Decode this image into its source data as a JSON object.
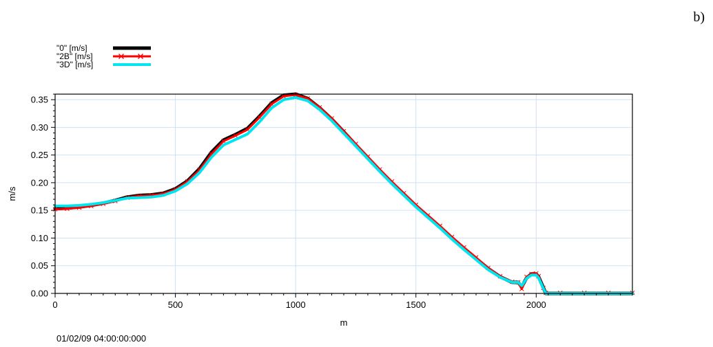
{
  "panel_label": "b)",
  "timestamp": "01/02/09 04:00:00:000",
  "colors": {
    "series_0": "#000000",
    "series_2b": "#ff0000",
    "series_3d": "#00e5ee",
    "grid": "#cfe1f5"
  },
  "chart_data": {
    "type": "line",
    "xlabel": "m",
    "ylabel": "m/s",
    "xlim": [
      0,
      2400
    ],
    "ylim": [
      0,
      0.36
    ],
    "grid": true,
    "legend_position": "top-left",
    "xticks": [
      0,
      500,
      1000,
      1500,
      2000
    ],
    "xtick_labels": [
      "0",
      "500",
      "1000",
      "1500",
      "2000"
    ],
    "yticks": [
      0,
      0.05,
      0.1,
      0.15,
      0.2,
      0.25,
      0.3,
      0.35
    ],
    "ytick_labels": [
      "0.00",
      "0.05",
      "0.10",
      "0.15",
      "0.20",
      "0.25",
      "0.30",
      "0.35"
    ],
    "x": [
      0,
      50,
      100,
      150,
      200,
      250,
      300,
      350,
      400,
      450,
      500,
      550,
      600,
      650,
      700,
      750,
      800,
      850,
      900,
      950,
      1000,
      1050,
      1100,
      1150,
      1200,
      1250,
      1300,
      1350,
      1400,
      1450,
      1500,
      1550,
      1600,
      1650,
      1700,
      1750,
      1800,
      1850,
      1900,
      1925,
      1940,
      1960,
      1980,
      2000,
      2010,
      2030,
      2040,
      2100,
      2200,
      2300,
      2400
    ],
    "series": [
      {
        "name": "\"0\"    [m/s]",
        "marker": "none",
        "values": [
          0.153,
          0.154,
          0.156,
          0.159,
          0.163,
          0.168,
          0.174,
          0.177,
          0.178,
          0.181,
          0.189,
          0.203,
          0.225,
          0.255,
          0.277,
          0.287,
          0.298,
          0.32,
          0.344,
          0.358,
          0.36,
          0.352,
          0.335,
          0.315,
          0.292,
          0.268,
          0.245,
          0.222,
          0.2,
          0.179,
          0.158,
          0.139,
          0.12,
          0.1,
          0.081,
          0.063,
          0.045,
          0.03,
          0.02,
          0.02,
          0.012,
          0.028,
          0.035,
          0.035,
          0.03,
          0.01,
          0.0,
          0.0,
          0.0,
          0.0,
          0.0
        ]
      },
      {
        "name": "\"2B\"  [m/s]",
        "marker": "x",
        "values": [
          0.152,
          0.153,
          0.155,
          0.158,
          0.162,
          0.167,
          0.173,
          0.176,
          0.177,
          0.18,
          0.188,
          0.202,
          0.223,
          0.252,
          0.275,
          0.285,
          0.296,
          0.318,
          0.342,
          0.356,
          0.359,
          0.352,
          0.336,
          0.316,
          0.293,
          0.27,
          0.247,
          0.224,
          0.202,
          0.181,
          0.16,
          0.141,
          0.122,
          0.102,
          0.083,
          0.065,
          0.046,
          0.031,
          0.021,
          0.02,
          0.008,
          0.03,
          0.035,
          0.036,
          0.031,
          0.01,
          0.001,
          0.001,
          0.001,
          0.001,
          0.001
        ]
      },
      {
        "name": "\"3D\"  [m/s]",
        "marker": "none",
        "values": [
          0.158,
          0.158,
          0.159,
          0.161,
          0.164,
          0.168,
          0.172,
          0.173,
          0.174,
          0.177,
          0.185,
          0.198,
          0.218,
          0.246,
          0.268,
          0.278,
          0.288,
          0.31,
          0.335,
          0.35,
          0.354,
          0.348,
          0.332,
          0.312,
          0.289,
          0.266,
          0.243,
          0.22,
          0.198,
          0.177,
          0.156,
          0.137,
          0.118,
          0.098,
          0.079,
          0.061,
          0.043,
          0.029,
          0.02,
          0.02,
          0.014,
          0.027,
          0.033,
          0.033,
          0.028,
          0.009,
          0.0,
          0.0,
          0.0,
          0.0,
          0.0
        ]
      }
    ]
  }
}
